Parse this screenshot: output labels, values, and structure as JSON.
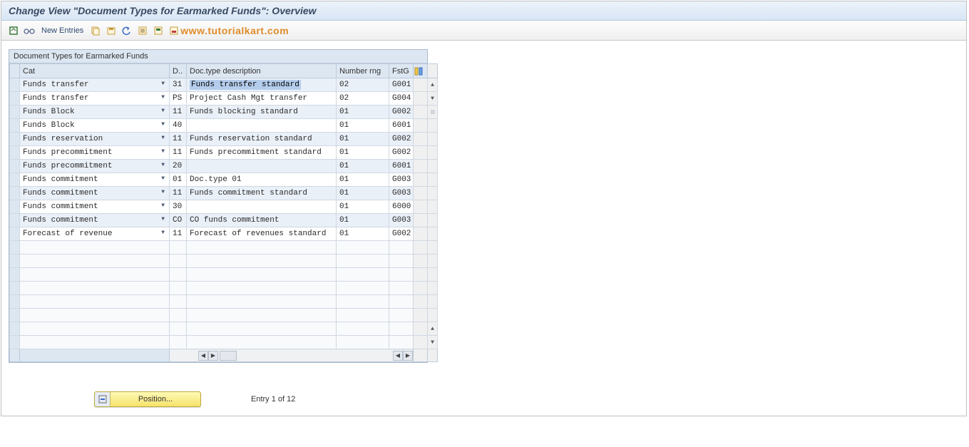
{
  "title": "Change View \"Document Types for Earmarked Funds\": Overview",
  "toolbar": {
    "new_entries": "New Entries",
    "watermark": "www.tutorialkart.com"
  },
  "panel": {
    "title": "Document Types for Earmarked Funds",
    "columns": {
      "cat": "Cat",
      "d": "D..",
      "desc": "Doc.type description",
      "nr": "Number rng",
      "fs": "FstG"
    },
    "rows": [
      {
        "cat": "Funds transfer",
        "d": "31",
        "desc": "Funds transfer standard",
        "nr": "02",
        "fs": "G001",
        "selected_desc": true
      },
      {
        "cat": "Funds transfer",
        "d": "PS",
        "desc": "Project Cash Mgt transfer",
        "nr": "02",
        "fs": "G004"
      },
      {
        "cat": "Funds Block",
        "d": "11",
        "desc": "Funds blocking standard",
        "nr": "01",
        "fs": "G002"
      },
      {
        "cat": "Funds Block",
        "d": "40",
        "desc": "",
        "nr": "01",
        "fs": "6001"
      },
      {
        "cat": "Funds reservation",
        "d": "11",
        "desc": "Funds reservation standard",
        "nr": "01",
        "fs": "G002"
      },
      {
        "cat": "Funds precommitment",
        "d": "11",
        "desc": "Funds precommitment standard",
        "nr": "01",
        "fs": "G002"
      },
      {
        "cat": "Funds precommitment",
        "d": "20",
        "desc": "",
        "nr": "01",
        "fs": "6001"
      },
      {
        "cat": "Funds commitment",
        "d": "01",
        "desc": "Doc.type 01",
        "nr": "01",
        "fs": "G003"
      },
      {
        "cat": "Funds commitment",
        "d": "11",
        "desc": "Funds commitment standard",
        "nr": "01",
        "fs": "G003"
      },
      {
        "cat": "Funds commitment",
        "d": "30",
        "desc": "",
        "nr": "01",
        "fs": "6000"
      },
      {
        "cat": "Funds commitment",
        "d": "CO",
        "desc": "CO funds commitment",
        "nr": "01",
        "fs": "G003"
      },
      {
        "cat": "Forecast of revenue",
        "d": "11",
        "desc": "Forecast of revenues standard",
        "nr": "01",
        "fs": "G002"
      }
    ],
    "empty_rows": 8
  },
  "footer": {
    "position_label": "Position...",
    "entry_text": "Entry 1 of 12"
  },
  "colors": {
    "title_bg_top": "#ecf2f9",
    "title_bg_bottom": "#d8e6f5",
    "header_bg": "#dde7f2",
    "row_alt": "#eaf0f8",
    "highlight": "#b5cdec",
    "watermark": "#e08c2a",
    "btn_yellow_top": "#fef9b6",
    "btn_yellow_bottom": "#f6e26a"
  }
}
